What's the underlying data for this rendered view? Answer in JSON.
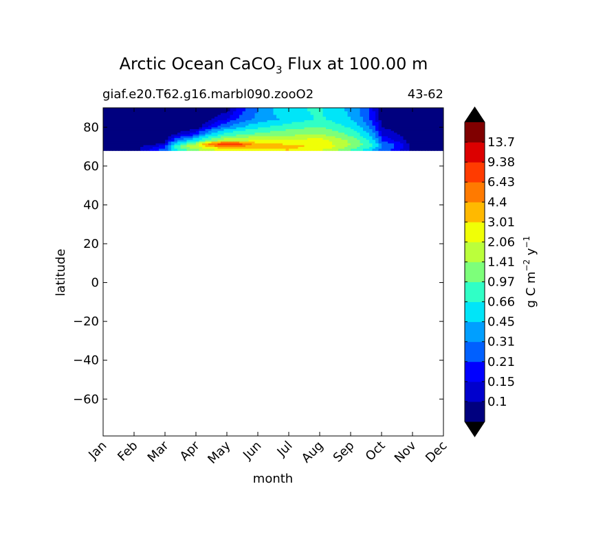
{
  "chart_data": {
    "type": "heatmap",
    "title_prefix": "Arctic Ocean CaCO",
    "title_sub": "3",
    "title_suffix": " Flux at 100.00 m",
    "subtitle_left": "giaf.e20.T62.g16.marbl090.zooO2",
    "subtitle_right": "43-62",
    "xlabel": "month",
    "ylabel": "latitude",
    "x_ticks": [
      "Jan",
      "Feb",
      "Mar",
      "Apr",
      "May",
      "Jun",
      "Jul",
      "Aug",
      "Sep",
      "Oct",
      "Nov",
      "Dec"
    ],
    "y_ticks": [
      80,
      60,
      40,
      20,
      0,
      -20,
      -40,
      -60
    ],
    "y_tick_labels": [
      "80",
      "60",
      "40",
      "20",
      "0",
      "−20",
      "−40",
      "−60"
    ],
    "ylim": [
      -79,
      90
    ],
    "xlim": [
      0,
      11
    ],
    "data_lat_range": [
      68,
      90
    ],
    "colorbar": {
      "label_main": "g C m",
      "label_sup1": "−2",
      "label_mid": " y",
      "label_sup2": "−1",
      "levels": [
        "0.1",
        "0.15",
        "0.21",
        "0.31",
        "0.45",
        "0.66",
        "0.97",
        "1.41",
        "2.06",
        "3.01",
        "4.4",
        "6.43",
        "9.38",
        "13.7"
      ],
      "colors": [
        "#00007f",
        "#0000cd",
        "#0000ff",
        "#0060ff",
        "#009fff",
        "#00e5f8",
        "#30ffc6",
        "#7dff7a",
        "#bbff3b",
        "#f0ff06",
        "#ffb900",
        "#ff7a00",
        "#ff3b00",
        "#dc0000",
        "#800000"
      ],
      "under_color": "#000000",
      "over_color": "#000000",
      "extend": "both"
    },
    "profiles": [
      {
        "lat": 89.0,
        "values": [
          0.05,
          0.05,
          0.05,
          0.05,
          0.08,
          0.3,
          0.6,
          0.7,
          0.4,
          0.06,
          0.05,
          0.05
        ]
      },
      {
        "lat": 84.0,
        "values": [
          0.05,
          0.05,
          0.05,
          0.05,
          0.15,
          0.35,
          0.5,
          0.7,
          0.45,
          0.08,
          0.05,
          0.05
        ]
      },
      {
        "lat": 80.0,
        "values": [
          0.05,
          0.05,
          0.05,
          0.06,
          0.3,
          0.6,
          0.8,
          1.0,
          0.6,
          0.1,
          0.05,
          0.05
        ]
      },
      {
        "lat": 76.0,
        "values": [
          0.05,
          0.05,
          0.06,
          0.2,
          0.8,
          1.1,
          1.3,
          1.5,
          0.9,
          0.15,
          0.06,
          0.05
        ]
      },
      {
        "lat": 73.0,
        "values": [
          0.05,
          0.05,
          0.08,
          0.6,
          1.8,
          2.2,
          2.3,
          2.4,
          1.3,
          0.2,
          0.07,
          0.05
        ]
      },
      {
        "lat": 71.0,
        "values": [
          0.05,
          0.06,
          0.12,
          1.4,
          10.0,
          3.5,
          3.0,
          2.6,
          1.4,
          0.3,
          0.08,
          0.05
        ]
      },
      {
        "lat": 70.0,
        "values": [
          0.05,
          0.07,
          0.2,
          2.0,
          4.5,
          3.4,
          3.2,
          3.0,
          1.3,
          0.3,
          0.08,
          0.05
        ]
      },
      {
        "lat": 68.0,
        "values": [
          0.05,
          0.06,
          0.25,
          1.0,
          2.0,
          2.5,
          3.0,
          2.0,
          0.8,
          0.25,
          0.08,
          0.05
        ]
      }
    ]
  }
}
